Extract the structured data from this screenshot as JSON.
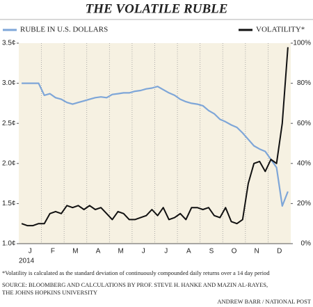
{
  "chart_data": {
    "type": "line",
    "title": "THE VOLATILE RUBLE",
    "year_label": "2014",
    "categories": [
      null,
      null,
      "J",
      null,
      null,
      null,
      "F",
      null,
      null,
      null,
      "M",
      null,
      null,
      null,
      "A",
      null,
      null,
      null,
      "M",
      null,
      null,
      null,
      "J",
      null,
      null,
      null,
      "J",
      null,
      null,
      null,
      "A",
      null,
      null,
      null,
      "S",
      null,
      null,
      null,
      "O",
      null,
      null,
      null,
      "N",
      null,
      null,
      null,
      "D",
      null
    ],
    "series": [
      {
        "name": "RUBLE IN U.S. DOLLARS",
        "color": "#7ea6d8",
        "values": [
          3.0,
          3.0,
          3.0,
          3.0,
          2.85,
          2.87,
          2.82,
          2.8,
          2.76,
          2.74,
          2.76,
          2.78,
          2.8,
          2.82,
          2.83,
          2.82,
          2.86,
          2.87,
          2.88,
          2.88,
          2.9,
          2.91,
          2.93,
          2.94,
          2.96,
          2.92,
          2.88,
          2.85,
          2.8,
          2.77,
          2.75,
          2.74,
          2.72,
          2.66,
          2.62,
          2.55,
          2.52,
          2.48,
          2.45,
          2.38,
          2.3,
          2.22,
          2.18,
          2.15,
          2.05,
          1.95,
          1.47,
          1.65
        ]
      },
      {
        "name": "VOLATILITY*",
        "color": "#111111",
        "axis": "y2",
        "values": [
          10,
          9,
          9,
          10,
          10,
          15,
          16,
          15,
          19,
          18,
          19,
          17,
          19,
          17,
          18,
          15,
          12,
          16,
          15,
          12,
          12,
          13,
          14,
          17,
          14,
          18,
          12,
          13,
          15,
          12,
          18,
          18,
          17,
          18,
          14,
          13,
          18,
          11,
          10,
          12,
          30,
          40,
          41,
          36,
          42,
          40,
          60,
          98
        ]
      }
    ],
    "ylim": [
      1.0,
      3.5
    ],
    "yticks": [
      {
        "value": 1.0,
        "label": "1.0¢"
      },
      {
        "value": 1.5,
        "label": "1.5¢"
      },
      {
        "value": 2.0,
        "label": "2.0¢"
      },
      {
        "value": 2.5,
        "label": "2.5¢"
      },
      {
        "value": 3.0,
        "label": "3.0¢"
      },
      {
        "value": 3.5,
        "label": "3.5¢"
      }
    ],
    "y2lim": [
      0,
      100
    ],
    "y2ticks": [
      {
        "value": 0,
        "label": "0%"
      },
      {
        "value": 20,
        "label": "20%"
      },
      {
        "value": 40,
        "label": "40%"
      },
      {
        "value": 60,
        "label": "60%"
      },
      {
        "value": 80,
        "label": "80%"
      },
      {
        "value": 100,
        "label": "100%"
      }
    ],
    "grid": true,
    "footnote": "*Volatility is calculated as the standard deviation of continuously compounded daily returns over a 14 day period",
    "source": [
      "SOURCE: BLOOMBERG AND CALCULATIONS BY PROF. STEVE H. HANKE AND MAZIN AL-RAYES,",
      "THE JOHNS HOPKINS UNIVERSITY"
    ],
    "credit": "ANDREW BARR / NATIONAL POST"
  }
}
